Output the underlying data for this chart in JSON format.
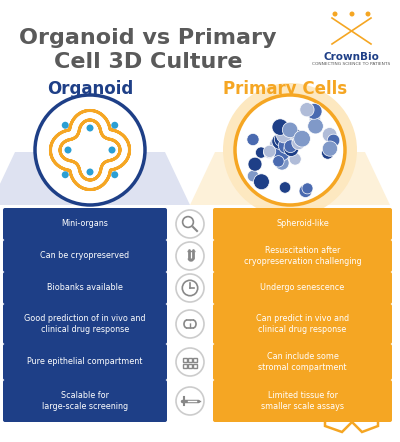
{
  "title_line1": "Organoid vs Primary",
  "title_line2": "Cell 3D Culture",
  "title_color": "#5a5a5a",
  "title_fontsize": 16,
  "left_header": "Organoid",
  "right_header": "Primary Cells",
  "left_header_color": "#1e3f87",
  "right_header_color": "#f5a623",
  "bg_color": "#ffffff",
  "left_box_color": "#1e3f87",
  "right_box_color": "#f5a623",
  "left_items": [
    "Mini-organs",
    "Can be cryopreserved",
    "Biobanks available",
    "Good prediction of in vivo and\nclinical drug response",
    "Pure epithelial compartment",
    "Scalable for\nlarge-scale screening"
  ],
  "right_items": [
    "Spheroid-like",
    "Resuscitation after\ncryopreservation challenging",
    "Undergo senescence",
    "Can predict in vivo and\nclinical drug response",
    "Can include some\nstromal compartment",
    "Limited tissue for\nsmaller scale assays"
  ],
  "left_circ_edge": "#1e3f87",
  "right_circ_edge": "#f5a623",
  "right_circ_bg": "#fde8c0",
  "organoid_color": "#f5a623",
  "organoid_inner": "#ffffff",
  "dot_color": "#2b9fd4",
  "cell_colors": [
    "#1e3f87",
    "#4a6ab0",
    "#8099c8",
    "#b0bcd8"
  ],
  "funnel_left_color": "#c8cfe8",
  "funnel_right_color": "#fde8c0",
  "icon_bg": "#ffffff",
  "icon_border": "#cccccc",
  "crownbio_orange": "#f5a623",
  "crownbio_blue": "#1e3f87",
  "crownbio_text_color": "#555555"
}
